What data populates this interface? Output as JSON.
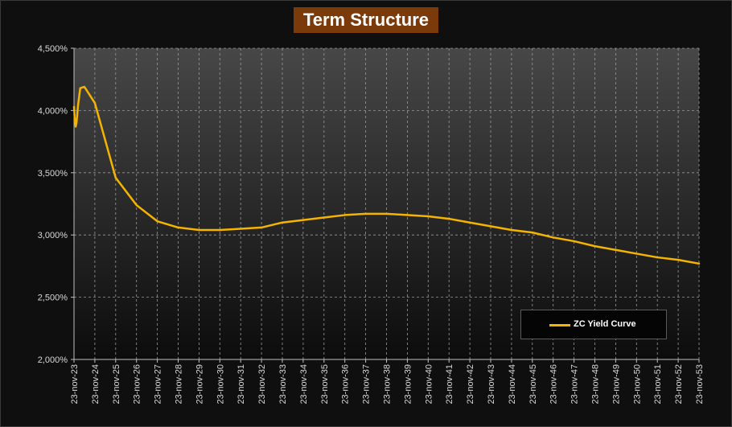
{
  "chart_data": {
    "type": "line",
    "title": "Term Structure",
    "xlabel": "",
    "ylabel": "",
    "ylim": [
      2.0,
      4.5
    ],
    "y_ticks": [
      "2,000%",
      "2,500%",
      "3,000%",
      "3,500%",
      "4,000%",
      "4,500%"
    ],
    "categories": [
      "23-nov-23",
      "23-nov-24",
      "23-nov-25",
      "23-nov-26",
      "23-nov-27",
      "23-nov-28",
      "23-nov-29",
      "23-nov-30",
      "23-nov-31",
      "23-nov-32",
      "23-nov-33",
      "23-nov-34",
      "23-nov-35",
      "23-nov-36",
      "23-nov-37",
      "23-nov-38",
      "23-nov-39",
      "23-nov-40",
      "23-nov-41",
      "23-nov-42",
      "23-nov-43",
      "23-nov-44",
      "23-nov-45",
      "23-nov-46",
      "23-nov-47",
      "23-nov-48",
      "23-nov-49",
      "23-nov-50",
      "23-nov-51",
      "23-nov-52",
      "23-nov-53"
    ],
    "grid": true,
    "legend_position": "bottom-right",
    "colors": {
      "series": "#f5b400",
      "title_bg": "#7a3a0a"
    },
    "series": [
      {
        "name": "ZC Yield Curve",
        "x": [
          0,
          0.03,
          0.08,
          0.12,
          0.2,
          0.3,
          0.5,
          1,
          2,
          3,
          4,
          5,
          6,
          7,
          8,
          9,
          10,
          11,
          12,
          13,
          14,
          15,
          16,
          17,
          18,
          19,
          20,
          21,
          22,
          23,
          24,
          25,
          26,
          27,
          28,
          29,
          30
        ],
        "values": [
          4.03,
          3.95,
          3.87,
          3.9,
          4.05,
          4.18,
          4.19,
          4.06,
          3.46,
          3.24,
          3.11,
          3.06,
          3.04,
          3.04,
          3.05,
          3.06,
          3.1,
          3.12,
          3.14,
          3.16,
          3.17,
          3.17,
          3.16,
          3.15,
          3.13,
          3.1,
          3.07,
          3.04,
          3.02,
          2.98,
          2.95,
          2.91,
          2.88,
          2.85,
          2.82,
          2.8,
          2.77
        ]
      }
    ]
  }
}
